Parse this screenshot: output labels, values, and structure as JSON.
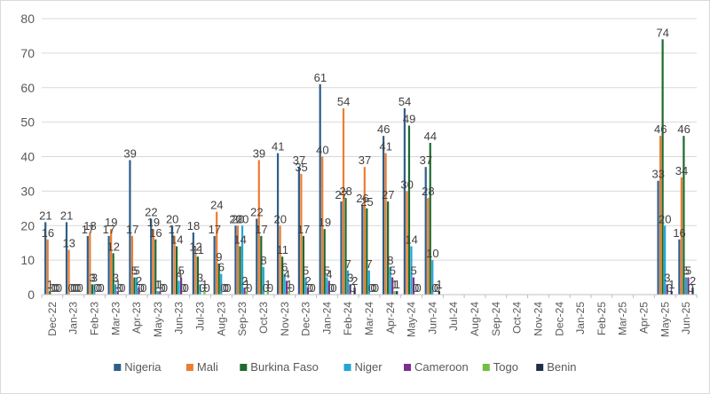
{
  "chart_data": {
    "type": "bar",
    "title": "",
    "xlabel": "",
    "ylabel": "",
    "ylim": [
      0,
      80
    ],
    "yticks": [
      0,
      10,
      20,
      30,
      40,
      50,
      60,
      70,
      80
    ],
    "grid": true,
    "legend_position": "bottom",
    "categories": [
      "Dec-22",
      "Jan-23",
      "Feb-23",
      "Mar-23",
      "Apr-23",
      "May-23",
      "Jun-23",
      "Jul-23",
      "Aug-23",
      "Sep-23",
      "Oct-23",
      "Nov-23",
      "Dec-23",
      "Jan-24",
      "Feb-24",
      "Mar-24",
      "Apr-24",
      "May-24",
      "Jun-24",
      "Jul-24",
      "Aug-24",
      "Sep-24",
      "Oct-24",
      "Nov-24",
      "Dec-24",
      "Jan-25",
      "Feb-25",
      "Mar-25",
      "Apr-25",
      "May-25",
      "Jun-25"
    ],
    "series": [
      {
        "name": "Nigeria",
        "color": "#2E5F8A",
        "values": [
          21,
          21,
          17,
          17,
          39,
          22,
          20,
          18,
          17,
          20,
          22,
          41,
          37,
          61,
          27,
          26,
          46,
          54,
          37,
          null,
          null,
          null,
          null,
          null,
          null,
          null,
          null,
          null,
          null,
          33,
          16
        ]
      },
      {
        "name": "Mali",
        "color": "#ED7D31",
        "values": [
          16,
          13,
          18,
          19,
          17,
          19,
          17,
          12,
          24,
          20,
          39,
          20,
          35,
          40,
          54,
          37,
          41,
          30,
          28,
          null,
          null,
          null,
          null,
          null,
          null,
          null,
          null,
          null,
          null,
          46,
          34
        ]
      },
      {
        "name": "Burkina Faso",
        "color": "#1E6B2E",
        "values": [
          1,
          0,
          3,
          12,
          5,
          16,
          14,
          11,
          9,
          14,
          17,
          11,
          17,
          19,
          28,
          25,
          27,
          49,
          44,
          null,
          null,
          null,
          null,
          null,
          null,
          null,
          null,
          null,
          null,
          74,
          46
        ]
      },
      {
        "name": "Niger",
        "color": "#21A6D6",
        "values": [
          0,
          0,
          3,
          3,
          5,
          1,
          4,
          3,
          6,
          20,
          8,
          6,
          5,
          5,
          7,
          7,
          8,
          14,
          10,
          null,
          null,
          null,
          null,
          null,
          null,
          null,
          null,
          null,
          null,
          20,
          5
        ]
      },
      {
        "name": "Cameroon",
        "color": "#7E2F8E",
        "values": [
          0,
          0,
          0,
          1,
          2,
          1,
          5,
          0,
          0,
          2,
          0,
          4,
          2,
          4,
          3,
          0,
          5,
          5,
          0,
          null,
          null,
          null,
          null,
          null,
          null,
          null,
          null,
          null,
          null,
          3,
          5
        ]
      },
      {
        "name": "Togo",
        "color": "#70C040",
        "values": [
          0,
          0,
          0,
          0,
          0,
          0,
          0,
          1,
          0,
          1,
          1,
          1,
          0,
          0,
          0,
          0,
          1,
          0,
          0,
          null,
          null,
          null,
          null,
          null,
          null,
          null,
          null,
          null,
          null,
          0,
          0
        ]
      },
      {
        "name": "Benin",
        "color": "#1F2F4A",
        "values": [
          0,
          0,
          0,
          0,
          0,
          0,
          0,
          0,
          0,
          0,
          0,
          0,
          0,
          0,
          2,
          0,
          1,
          0,
          1,
          null,
          null,
          null,
          null,
          null,
          null,
          null,
          null,
          null,
          null,
          1,
          2
        ]
      }
    ]
  }
}
